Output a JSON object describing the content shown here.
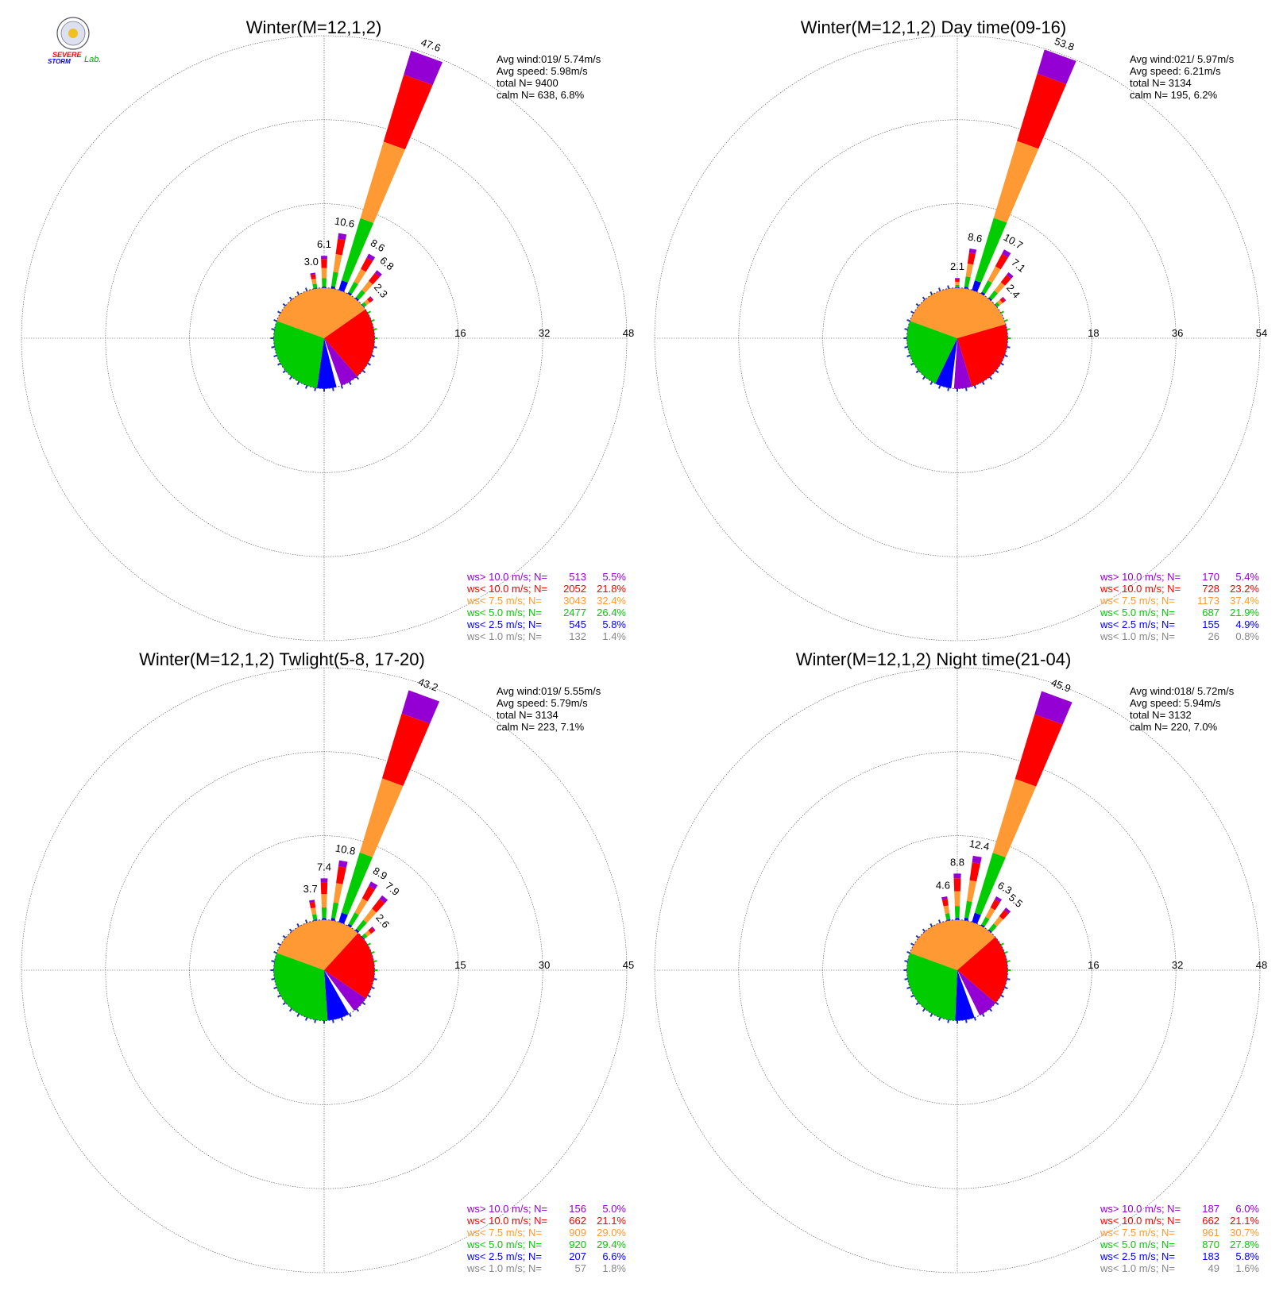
{
  "colors": {
    "gt10": "#9400d3",
    "lt10": "#ff0000",
    "lt75": "#ff9933",
    "lt5": "#00cc00",
    "lt25": "#0000ff",
    "lt1": "#888888",
    "grid": "#555555"
  },
  "logo": {
    "text_a": "SEVERE",
    "text_b": "STORM",
    "text_c": "Lab."
  },
  "chart_data": [
    {
      "type": "wind-rose",
      "title": "Winter(M=12,1,2)",
      "rings": [
        "16",
        "32",
        "48"
      ],
      "ring_max": 48,
      "stats": {
        "avg_wind": "Avg wind:019/ 5.74m/s",
        "avg_speed": "Avg speed: 5.98m/s",
        "total": "total N=       9400",
        "calm": "calm N=    638,   6.8%"
      },
      "petals": [
        {
          "dir": 0,
          "value": 6.1,
          "label": "6.1"
        },
        {
          "dir": 10,
          "value": 10.6,
          "label": "10.6"
        },
        {
          "dir": 20,
          "value": 47.6,
          "label": "47.6"
        },
        {
          "dir": 30,
          "value": 8.6,
          "label": "8.6"
        },
        {
          "dir": 40,
          "value": 6.8,
          "label": "6.8"
        },
        {
          "dir": 50,
          "value": 2.3,
          "label": "2.3"
        },
        {
          "dir": 350,
          "value": 3.0,
          "label": "3.0"
        }
      ],
      "pie": [
        32.4,
        21.8,
        5.5,
        1.4,
        5.8,
        26.4
      ],
      "legend": [
        {
          "label": "ws> 10.0 m/s; N=",
          "n": "513",
          "pct": "5.5%"
        },
        {
          "label": "ws< 10.0 m/s; N=",
          "n": "2052",
          "pct": "21.8%"
        },
        {
          "label": "ws<  7.5 m/s; N=",
          "n": "3043",
          "pct": "32.4%"
        },
        {
          "label": "ws<  5.0 m/s; N=",
          "n": "2477",
          "pct": "26.4%"
        },
        {
          "label": "ws<  2.5 m/s; N=",
          "n": "545",
          "pct": "5.8%"
        },
        {
          "label": "ws<  1.0 m/s; N=",
          "n": "132",
          "pct": "1.4%"
        }
      ]
    },
    {
      "type": "wind-rose",
      "title": "Winter(M=12,1,2) Day time(09-16)",
      "rings": [
        "18",
        "36",
        "54"
      ],
      "ring_max": 54,
      "stats": {
        "avg_wind": "Avg wind:021/ 5.97m/s",
        "avg_speed": "Avg speed: 6.21m/s",
        "total": "total N=       3134",
        "calm": "calm N=    195,   6.2%"
      },
      "petals": [
        {
          "dir": 0,
          "value": 2.1,
          "label": "2.1"
        },
        {
          "dir": 10,
          "value": 8.6,
          "label": "8.6"
        },
        {
          "dir": 20,
          "value": 53.8,
          "label": "53.8"
        },
        {
          "dir": 30,
          "value": 10.7,
          "label": "10.7"
        },
        {
          "dir": 40,
          "value": 7.1,
          "label": "7.1"
        },
        {
          "dir": 50,
          "value": 2.4,
          "label": "2.4"
        }
      ],
      "pie": [
        37.4,
        23.2,
        5.4,
        0.8,
        4.9,
        21.9
      ],
      "legend": [
        {
          "label": "ws> 10.0 m/s; N=",
          "n": "170",
          "pct": "5.4%"
        },
        {
          "label": "ws< 10.0 m/s; N=",
          "n": "728",
          "pct": "23.2%"
        },
        {
          "label": "ws<  7.5 m/s; N=",
          "n": "1173",
          "pct": "37.4%"
        },
        {
          "label": "ws<  5.0 m/s; N=",
          "n": "687",
          "pct": "21.9%"
        },
        {
          "label": "ws<  2.5 m/s; N=",
          "n": "155",
          "pct": "4.9%"
        },
        {
          "label": "ws<  1.0 m/s; N=",
          "n": "26",
          "pct": "0.8%"
        }
      ]
    },
    {
      "type": "wind-rose",
      "title": "Winter(M=12,1,2) Twlight(5-8, 17-20)",
      "rings": [
        "15",
        "30",
        "45"
      ],
      "ring_max": 45,
      "stats": {
        "avg_wind": "Avg wind:019/ 5.55m/s",
        "avg_speed": "Avg speed: 5.79m/s",
        "total": "total N=       3134",
        "calm": "calm N=    223,   7.1%"
      },
      "petals": [
        {
          "dir": 0,
          "value": 7.4,
          "label": "7.4"
        },
        {
          "dir": 10,
          "value": 10.8,
          "label": "10.8"
        },
        {
          "dir": 20,
          "value": 43.2,
          "label": "43.2"
        },
        {
          "dir": 30,
          "value": 8.9,
          "label": "8.9"
        },
        {
          "dir": 40,
          "value": 7.9,
          "label": "7.9"
        },
        {
          "dir": 50,
          "value": 2.6,
          "label": "2.6"
        },
        {
          "dir": 350,
          "value": 3.7,
          "label": "3.7"
        }
      ],
      "pie": [
        29.0,
        21.1,
        5.0,
        1.8,
        6.6,
        29.4
      ],
      "legend": [
        {
          "label": "ws> 10.0 m/s; N=",
          "n": "156",
          "pct": "5.0%"
        },
        {
          "label": "ws< 10.0 m/s; N=",
          "n": "662",
          "pct": "21.1%"
        },
        {
          "label": "ws<  7.5 m/s; N=",
          "n": "909",
          "pct": "29.0%"
        },
        {
          "label": "ws<  5.0 m/s; N=",
          "n": "920",
          "pct": "29.4%"
        },
        {
          "label": "ws<  2.5 m/s; N=",
          "n": "207",
          "pct": "6.6%"
        },
        {
          "label": "ws<  1.0 m/s; N=",
          "n": "57",
          "pct": "1.8%"
        }
      ]
    },
    {
      "type": "wind-rose",
      "title": "Winter(M=12,1,2) Night time(21-04)",
      "rings": [
        "16",
        "32",
        "48"
      ],
      "ring_max": 48,
      "stats": {
        "avg_wind": "Avg wind:018/ 5.72m/s",
        "avg_speed": "Avg speed: 5.94m/s",
        "total": "total N=       3132",
        "calm": "calm N=    220,   7.0%"
      },
      "petals": [
        {
          "dir": 0,
          "value": 8.8,
          "label": "8.8"
        },
        {
          "dir": 10,
          "value": 12.4,
          "label": "12.4"
        },
        {
          "dir": 20,
          "value": 45.9,
          "label": "45.9"
        },
        {
          "dir": 30,
          "value": 6.3,
          "label": "6.3"
        },
        {
          "dir": 40,
          "value": 5.5,
          "label": "5.5"
        },
        {
          "dir": 350,
          "value": 4.6,
          "label": "4.6"
        }
      ],
      "pie": [
        30.7,
        21.1,
        6.0,
        1.6,
        5.8,
        27.8
      ],
      "legend": [
        {
          "label": "ws> 10.0 m/s; N=",
          "n": "187",
          "pct": "6.0%"
        },
        {
          "label": "ws< 10.0 m/s; N=",
          "n": "662",
          "pct": "21.1%"
        },
        {
          "label": "ws<  7.5 m/s; N=",
          "n": "961",
          "pct": "30.7%"
        },
        {
          "label": "ws<  5.0 m/s; N=",
          "n": "870",
          "pct": "27.8%"
        },
        {
          "label": "ws<  2.5 m/s; N=",
          "n": "183",
          "pct": "5.8%"
        },
        {
          "label": "ws<  1.0 m/s; N=",
          "n": "49",
          "pct": "1.6%"
        }
      ]
    }
  ]
}
